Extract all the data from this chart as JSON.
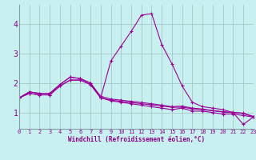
{
  "xlabel": "Windchill (Refroidissement éolien,°C)",
  "background_color": "#c8f0f0",
  "grid_color": "#a8c8c8",
  "line_color": "#990099",
  "x_ticks": [
    0,
    1,
    2,
    3,
    4,
    5,
    6,
    7,
    8,
    9,
    10,
    11,
    12,
    13,
    14,
    15,
    16,
    17,
    18,
    19,
    20,
    21,
    22,
    23
  ],
  "y_ticks": [
    1,
    2,
    3,
    4
  ],
  "ylim": [
    0.45,
    4.65
  ],
  "xlim": [
    0,
    23
  ],
  "series": [
    [
      1.5,
      1.7,
      1.65,
      1.65,
      1.95,
      2.2,
      2.15,
      2.0,
      1.5,
      1.42,
      1.38,
      1.34,
      1.3,
      1.26,
      1.22,
      1.18,
      1.18,
      1.13,
      1.1,
      1.06,
      1.02,
      1.0,
      0.97,
      0.85
    ],
    [
      1.5,
      1.7,
      1.65,
      1.65,
      1.95,
      2.2,
      2.15,
      2.0,
      1.55,
      1.46,
      1.42,
      1.38,
      1.34,
      1.3,
      1.25,
      1.2,
      1.22,
      1.15,
      1.12,
      1.07,
      1.03,
      1.01,
      0.98,
      0.87
    ],
    [
      1.5,
      1.65,
      1.6,
      1.6,
      1.9,
      2.1,
      2.1,
      1.95,
      1.5,
      2.75,
      3.25,
      3.75,
      4.3,
      4.35,
      3.3,
      2.65,
      1.9,
      1.35,
      1.2,
      1.15,
      1.1,
      1.0,
      0.6,
      0.85
    ],
    [
      1.5,
      1.65,
      1.6,
      1.6,
      1.9,
      2.1,
      2.1,
      1.95,
      1.5,
      1.4,
      1.35,
      1.3,
      1.25,
      1.2,
      1.15,
      1.1,
      1.15,
      1.05,
      1.05,
      1.0,
      0.95,
      0.95,
      0.9,
      0.85
    ]
  ]
}
